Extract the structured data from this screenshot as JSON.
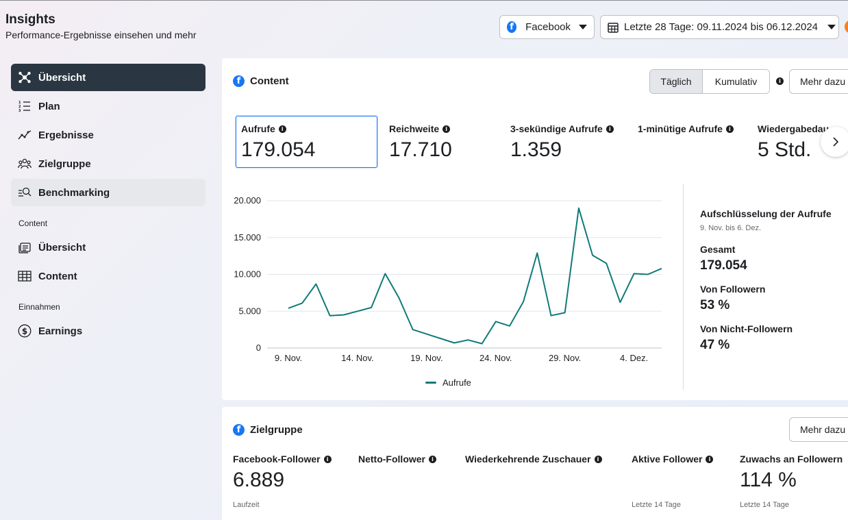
{
  "header": {
    "title": "Insights",
    "subtitle": "Performance-Ergebnisse einsehen und mehr",
    "platform_label": "Facebook",
    "date_range_label": "Letzte 28 Tage: 09.11.2024 bis 06.12.2024"
  },
  "sidebar": {
    "items": [
      {
        "label": "Übersicht",
        "icon": "overview-icon",
        "state": "active"
      },
      {
        "label": "Plan",
        "icon": "plan-list-icon",
        "state": "normal"
      },
      {
        "label": "Ergebnisse",
        "icon": "results-trend-icon",
        "state": "normal"
      },
      {
        "label": "Zielgruppe",
        "icon": "audience-icon",
        "state": "normal"
      },
      {
        "label": "Benchmarking",
        "icon": "benchmark-icon",
        "state": "hover"
      }
    ],
    "content_section": "Content",
    "content_items": [
      {
        "label": "Übersicht",
        "icon": "content-overview-icon"
      },
      {
        "label": "Content",
        "icon": "table-icon"
      }
    ],
    "earnings_section": "Einnahmen",
    "earnings_items": [
      {
        "label": "Earnings",
        "icon": "dollar-icon"
      }
    ]
  },
  "content_card": {
    "title": "Content",
    "toggle_daily": "Täglich",
    "toggle_cumulative": "Kumulativ",
    "more_button": "Mehr dazu",
    "metrics": [
      {
        "label": "Aufrufe",
        "value": "179.054"
      },
      {
        "label": "Reichweite",
        "value": "17.710"
      },
      {
        "label": "3-sekündige Aufrufe",
        "value": "1.359"
      },
      {
        "label": "1-minütige Aufrufe",
        "value": ""
      },
      {
        "label": "Wiedergabedau",
        "value": "5 Std."
      }
    ],
    "breakdown": {
      "title": "Aufschlüsselung der Aufrufe",
      "period": "9. Nov. bis 6. Dez.",
      "total_label": "Gesamt",
      "total_value": "179.054",
      "followers_label": "Von Followern",
      "followers_value": "53 %",
      "non_followers_label": "Von Nicht-Followern",
      "non_followers_value": "47 %"
    }
  },
  "chart_data": {
    "type": "line",
    "x": [
      "9. Nov.",
      "10. Nov.",
      "11. Nov.",
      "12. Nov.",
      "13. Nov.",
      "14. Nov.",
      "15. Nov.",
      "16. Nov.",
      "17. Nov.",
      "18. Nov.",
      "19. Nov.",
      "20. Nov.",
      "21. Nov.",
      "22. Nov.",
      "23. Nov.",
      "24. Nov.",
      "25. Nov.",
      "26. Nov.",
      "27. Nov.",
      "28. Nov.",
      "29. Nov.",
      "30. Nov.",
      "1. Dez.",
      "2. Dez.",
      "3. Dez.",
      "4. Dez.",
      "5. Dez.",
      "6. Dez."
    ],
    "x_tick_labels": [
      "9. Nov.",
      "14. Nov.",
      "19. Nov.",
      "24. Nov.",
      "29. Nov.",
      "4. Dez."
    ],
    "series": [
      {
        "name": "Aufrufe",
        "color": "#0f7a78",
        "values": [
          5400,
          6100,
          8700,
          4400,
          4500,
          5000,
          5500,
          10100,
          6800,
          2500,
          1900,
          1300,
          700,
          1100,
          600,
          3600,
          3000,
          6300,
          12900,
          4400,
          4800,
          19000,
          12600,
          11500,
          6200,
          10100,
          10000,
          10800
        ]
      }
    ],
    "y_ticks": [
      "0",
      "5.000",
      "10.000",
      "15.000",
      "20.000"
    ],
    "ylim": [
      0,
      20000
    ],
    "grid": true,
    "legend": "bottom"
  },
  "audience_card": {
    "title": "Zielgruppe",
    "more_button": "Mehr dazu",
    "metrics": [
      {
        "label": "Facebook-Follower",
        "value": "6.889",
        "note": "Laufzeit"
      },
      {
        "label": "Netto-Follower",
        "value": "",
        "note": ""
      },
      {
        "label": "Wiederkehrende Zuschauer",
        "value": "",
        "note": ""
      },
      {
        "label": "Aktive Follower",
        "value": "",
        "note": "Letzte 14 Tage"
      },
      {
        "label": "Zuwachs an Followern",
        "value": "114 %",
        "note": "Letzte 14 Tage"
      }
    ]
  }
}
